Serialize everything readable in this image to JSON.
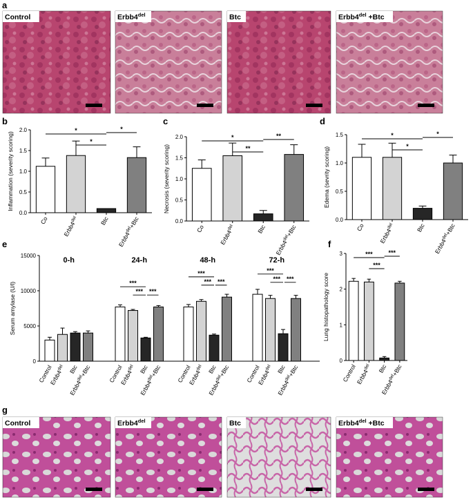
{
  "panel_letters": {
    "a": "a",
    "b": "b",
    "c": "c",
    "d": "d",
    "e": "e",
    "f": "f",
    "g": "g"
  },
  "micro_a": [
    {
      "main": "Control",
      "sup": ""
    },
    {
      "main": "Erbb4",
      "sup": "del"
    },
    {
      "main": "Btc",
      "sup": ""
    },
    {
      "main": "Erbb4",
      "sup": "del",
      "suffix": " +Btc"
    }
  ],
  "micro_g": [
    {
      "main": "Control",
      "sup": ""
    },
    {
      "main": "Erbb4",
      "sup": "del"
    },
    {
      "main": "Btc",
      "sup": ""
    },
    {
      "main": "Erbb4",
      "sup": "del",
      "suffix": " +Btc"
    }
  ],
  "colors": {
    "white": "#ffffff",
    "light": "#d3d3d3",
    "dark": "#262626",
    "grey": "#808080",
    "he_pancreas": "#b0406a",
    "he_lung": "#c0509a"
  },
  "chart_data": [
    {
      "id": "b",
      "type": "bar",
      "ylabel": "Inflammation (severity scoring)",
      "ylim": [
        0,
        2.0
      ],
      "yticks": [
        "0.0",
        "0.5",
        "1.0",
        "1.5",
        "2.0"
      ],
      "categories": [
        "Co",
        "Erbb4del",
        "Btc",
        "Erbb4del+Btc"
      ],
      "values": [
        1.12,
        1.38,
        0.1,
        1.33
      ],
      "errors": [
        0.2,
        0.35,
        0,
        0.26
      ],
      "fills": [
        "white",
        "light",
        "dark",
        "grey"
      ],
      "sig": [
        {
          "from": 0,
          "to": 2,
          "label": "*"
        },
        {
          "from": 1,
          "to": 2,
          "label": "*"
        },
        {
          "from": 2,
          "to": 3,
          "label": "*"
        }
      ]
    },
    {
      "id": "c",
      "type": "bar",
      "ylabel": "Necrosis (severity scoring)",
      "ylim": [
        0,
        2.0
      ],
      "yticks": [
        "0.0",
        "0.5",
        "1.0",
        "1.5",
        "2.0"
      ],
      "categories": [
        "Co",
        "Erbb4del",
        "Btc",
        "Erbb4del+Btc"
      ],
      "values": [
        1.25,
        1.55,
        0.17,
        1.58
      ],
      "errors": [
        0.2,
        0.3,
        0.08,
        0.23
      ],
      "fills": [
        "white",
        "light",
        "dark",
        "grey"
      ],
      "sig": [
        {
          "from": 0,
          "to": 2,
          "label": "*"
        },
        {
          "from": 1,
          "to": 2,
          "label": "**"
        },
        {
          "from": 2,
          "to": 3,
          "label": "**"
        }
      ]
    },
    {
      "id": "d",
      "type": "bar",
      "ylabel": "Edema (sevrity scoring)",
      "ylim": [
        0,
        1.5
      ],
      "yticks": [
        "0.0",
        "0.5",
        "1.0",
        "1.5"
      ],
      "categories": [
        "Co",
        "Erbb4del",
        "Btc",
        "Erbb4del+Btc"
      ],
      "values": [
        1.1,
        1.1,
        0.2,
        1.0
      ],
      "errors": [
        0.23,
        0.25,
        0.04,
        0.14
      ],
      "fills": [
        "white",
        "light",
        "dark",
        "grey"
      ],
      "sig": [
        {
          "from": 0,
          "to": 2,
          "label": "*"
        },
        {
          "from": 1,
          "to": 2,
          "label": "*"
        },
        {
          "from": 2,
          "to": 3,
          "label": "*"
        }
      ]
    },
    {
      "id": "e",
      "type": "bar",
      "ylabel": "Serum amylase (U/l)",
      "ylim": [
        0,
        15000
      ],
      "yticks": [
        "0",
        "5000",
        "10000",
        "15000"
      ],
      "group_labels": [
        "0-h",
        "24-h",
        "48-h",
        "72-h"
      ],
      "categories": [
        "Control",
        "Erbb4del",
        "Btc",
        "Erbb4del+Btc"
      ],
      "values": [
        [
          3000,
          3800,
          4000,
          4000
        ],
        [
          7700,
          7200,
          3300,
          7700
        ],
        [
          7700,
          8500,
          3700,
          9100
        ],
        [
          9500,
          8900,
          3900,
          8900
        ]
      ],
      "errors": [
        [
          400,
          900,
          200,
          300
        ],
        [
          300,
          150,
          100,
          200
        ],
        [
          350,
          250,
          150,
          400
        ],
        [
          700,
          450,
          600,
          450
        ]
      ],
      "fills": [
        "white",
        "light",
        "dark",
        "grey"
      ],
      "sig": [
        {
          "group": 1,
          "from": 0,
          "to": 2,
          "label": "***"
        },
        {
          "group": 1,
          "from": 1,
          "to": 2,
          "label": "***"
        },
        {
          "group": 1,
          "from": 2,
          "to": 3,
          "label": "***"
        },
        {
          "group": 2,
          "from": 0,
          "to": 2,
          "label": "***"
        },
        {
          "group": 2,
          "from": 1,
          "to": 2,
          "label": "***"
        },
        {
          "group": 2,
          "from": 2,
          "to": 3,
          "label": "***"
        },
        {
          "group": 3,
          "from": 0,
          "to": 2,
          "label": "***"
        },
        {
          "group": 3,
          "from": 1,
          "to": 2,
          "label": "***"
        },
        {
          "group": 3,
          "from": 2,
          "to": 3,
          "label": "***"
        }
      ]
    },
    {
      "id": "f",
      "type": "bar",
      "ylabel": "Lung histopathology score",
      "ylim": [
        0,
        3
      ],
      "yticks": [
        "0",
        "1",
        "2",
        "3"
      ],
      "categories": [
        "Control",
        "Erbb4del",
        "Btc",
        "Erbb4del+Btc"
      ],
      "values": [
        2.22,
        2.2,
        0.07,
        2.17
      ],
      "errors": [
        0.08,
        0.08,
        0.04,
        0.05
      ],
      "fills": [
        "white",
        "light",
        "dark",
        "grey"
      ],
      "sig": [
        {
          "from": 0,
          "to": 2,
          "label": "***"
        },
        {
          "from": 1,
          "to": 2,
          "label": "***"
        },
        {
          "from": 2,
          "to": 3,
          "label": "***"
        }
      ]
    }
  ]
}
